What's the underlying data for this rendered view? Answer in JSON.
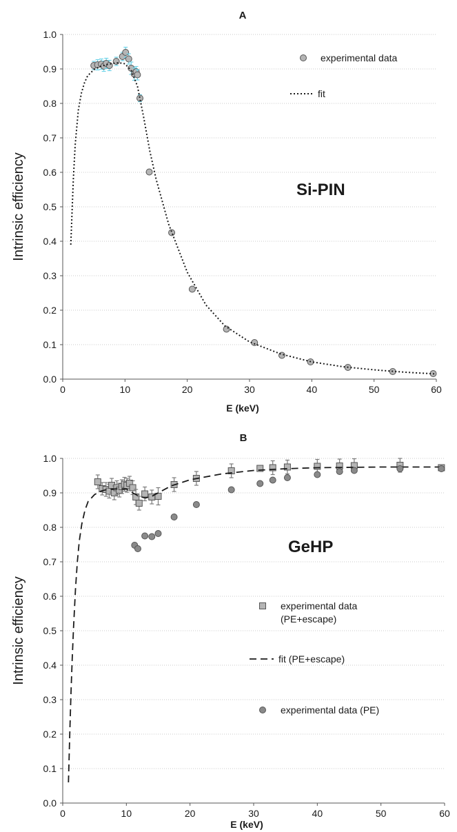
{
  "chart_data": [
    {
      "type": "scatter",
      "title": "A",
      "xlabel": "E (keV)",
      "ylabel": "Intrinsic efficiency",
      "annotation": "Si-PIN",
      "xlim": [
        0,
        60
      ],
      "ylim": [
        0.0,
        1.0
      ],
      "xticks": [
        "0",
        "10",
        "20",
        "30",
        "40",
        "50",
        "60"
      ],
      "yticks": [
        "0.0",
        "0.1",
        "0.2",
        "0.3",
        "0.4",
        "0.5",
        "0.6",
        "0.7",
        "0.8",
        "0.9",
        "1.0"
      ],
      "grid": "horizontal dotted",
      "legend_position": "top-right",
      "series": [
        {
          "name": "experimental data",
          "marker": "circle",
          "color": "#b5b5b5",
          "error_color": "#6fd3e8",
          "points": [
            [
              5.0,
              0.91,
              0.012
            ],
            [
              5.6,
              0.912,
              0.015
            ],
            [
              6.2,
              0.914,
              0.015
            ],
            [
              6.6,
              0.908,
              0.015
            ],
            [
              7.0,
              0.916,
              0.015
            ],
            [
              7.5,
              0.91,
              0.015
            ],
            [
              8.6,
              0.922,
              0.012
            ],
            [
              9.6,
              0.936,
              0.012
            ],
            [
              10.1,
              0.948,
              0.015
            ],
            [
              10.6,
              0.929,
              0.015
            ],
            [
              11.0,
              0.902,
              0.018
            ],
            [
              11.5,
              0.885,
              0.018
            ],
            [
              11.8,
              0.892,
              0.015
            ],
            [
              12.0,
              0.883,
              0.015
            ],
            [
              12.4,
              0.815,
              0.01
            ],
            [
              13.9,
              0.601,
              0.0
            ],
            [
              17.5,
              0.425,
              0.0
            ],
            [
              20.8,
              0.261,
              0.0
            ],
            [
              26.3,
              0.145,
              0.0
            ],
            [
              30.8,
              0.106,
              0.0
            ],
            [
              35.2,
              0.069,
              0.0
            ],
            [
              39.8,
              0.05,
              0.0
            ],
            [
              45.8,
              0.034,
              0.0
            ],
            [
              53.0,
              0.022,
              0.0
            ],
            [
              59.5,
              0.016,
              0.0
            ]
          ]
        },
        {
          "name": "fit",
          "style": "dotted",
          "color": "#1a1a1a",
          "points": [
            [
              1.3,
              0.39
            ],
            [
              1.7,
              0.58
            ],
            [
              2.0,
              0.68
            ],
            [
              2.5,
              0.78
            ],
            [
              3.0,
              0.83
            ],
            [
              3.5,
              0.86
            ],
            [
              4.0,
              0.88
            ],
            [
              5.0,
              0.898
            ],
            [
              6.0,
              0.907
            ],
            [
              7.0,
              0.912
            ],
            [
              8.0,
              0.916
            ],
            [
              9.0,
              0.918
            ],
            [
              10.0,
              0.915
            ],
            [
              11.0,
              0.895
            ],
            [
              12.0,
              0.85
            ],
            [
              13.0,
              0.76
            ],
            [
              14.0,
              0.66
            ],
            [
              15.0,
              0.58
            ],
            [
              17.0,
              0.45
            ],
            [
              20.0,
              0.31
            ],
            [
              23.0,
              0.215
            ],
            [
              26.0,
              0.155
            ],
            [
              30.0,
              0.108
            ],
            [
              35.0,
              0.073
            ],
            [
              40.0,
              0.05
            ],
            [
              45.0,
              0.036
            ],
            [
              50.0,
              0.027
            ],
            [
              55.0,
              0.02
            ],
            [
              60.0,
              0.015
            ]
          ]
        }
      ]
    },
    {
      "type": "scatter",
      "title": "B",
      "xlabel": "E (keV)",
      "ylabel": "Intrinsic efficiency",
      "annotation": "GeHP",
      "xlim": [
        0,
        60
      ],
      "ylim": [
        0.0,
        1.0
      ],
      "xticks": [
        "0",
        "10",
        "20",
        "30",
        "40",
        "50",
        "60"
      ],
      "yticks": [
        "0.0",
        "0.1",
        "0.2",
        "0.3",
        "0.4",
        "0.5",
        "0.6",
        "0.7",
        "0.8",
        "0.9",
        "1.0"
      ],
      "grid": "horizontal dotted",
      "legend_position": "bottom-right",
      "series": [
        {
          "name": "experimental data\n(PE+escape)",
          "marker": "square",
          "color": "#b5b5b5",
          "error_color": "#7a7a7a",
          "points": [
            [
              5.5,
              0.932,
              0.02
            ],
            [
              6.2,
              0.912,
              0.018
            ],
            [
              6.8,
              0.91,
              0.02
            ],
            [
              7.3,
              0.905,
              0.02
            ],
            [
              7.7,
              0.922,
              0.02
            ],
            [
              8.1,
              0.9,
              0.02
            ],
            [
              8.5,
              0.915,
              0.02
            ],
            [
              8.9,
              0.908,
              0.02
            ],
            [
              9.3,
              0.918,
              0.02
            ],
            [
              9.7,
              0.925,
              0.02
            ],
            [
              10.1,
              0.922,
              0.02
            ],
            [
              10.5,
              0.928,
              0.02
            ],
            [
              11.0,
              0.915,
              0.02
            ],
            [
              11.5,
              0.888,
              0.022
            ],
            [
              12.0,
              0.87,
              0.02
            ],
            [
              12.9,
              0.897,
              0.02
            ],
            [
              14.0,
              0.888,
              0.02
            ],
            [
              15.0,
              0.89,
              0.025
            ],
            [
              17.5,
              0.924,
              0.02
            ],
            [
              21.0,
              0.942,
              0.02
            ],
            [
              26.5,
              0.964,
              0.02
            ],
            [
              31.0,
              0.971,
              0.008
            ],
            [
              33.0,
              0.973,
              0.02
            ],
            [
              35.3,
              0.975,
              0.02
            ],
            [
              40.0,
              0.977,
              0.02
            ],
            [
              43.5,
              0.978,
              0.02
            ],
            [
              45.8,
              0.979,
              0.02
            ],
            [
              53.0,
              0.98,
              0.02
            ],
            [
              59.5,
              0.973,
              0.008
            ]
          ]
        },
        {
          "name": "fit (PE+escape)",
          "style": "dashed",
          "color": "#1a1a1a",
          "points": [
            [
              0.9,
              0.06
            ],
            [
              1.1,
              0.2
            ],
            [
              1.3,
              0.32
            ],
            [
              1.5,
              0.42
            ],
            [
              1.7,
              0.51
            ],
            [
              2.0,
              0.62
            ],
            [
              2.3,
              0.7
            ],
            [
              2.6,
              0.76
            ],
            [
              3.0,
              0.81
            ],
            [
              3.5,
              0.85
            ],
            [
              4.0,
              0.875
            ],
            [
              5.0,
              0.895
            ],
            [
              6.0,
              0.905
            ],
            [
              7.0,
              0.91
            ],
            [
              9.0,
              0.912
            ],
            [
              10.0,
              0.911
            ],
            [
              11.0,
              0.9
            ],
            [
              12.0,
              0.89
            ],
            [
              13.0,
              0.885
            ],
            [
              14.0,
              0.89
            ],
            [
              15.0,
              0.9
            ],
            [
              17.0,
              0.92
            ],
            [
              20.0,
              0.938
            ],
            [
              25.0,
              0.955
            ],
            [
              30.0,
              0.965
            ],
            [
              35.0,
              0.97
            ],
            [
              40.0,
              0.973
            ],
            [
              50.0,
              0.975
            ],
            [
              60.0,
              0.975
            ]
          ]
        },
        {
          "name": "experimental data (PE)",
          "marker": "circle",
          "color": "#8a8a8a",
          "points": [
            [
              11.3,
              0.748
            ],
            [
              11.8,
              0.738
            ],
            [
              12.9,
              0.775
            ],
            [
              14.0,
              0.773
            ],
            [
              15.0,
              0.782
            ],
            [
              17.5,
              0.83
            ],
            [
              21.0,
              0.866
            ],
            [
              26.5,
              0.909
            ],
            [
              31.0,
              0.927
            ],
            [
              33.0,
              0.937
            ],
            [
              35.3,
              0.944
            ],
            [
              40.0,
              0.953
            ],
            [
              43.5,
              0.962
            ],
            [
              45.8,
              0.965
            ],
            [
              53.0,
              0.97
            ],
            [
              59.5,
              0.97
            ]
          ]
        }
      ]
    }
  ]
}
